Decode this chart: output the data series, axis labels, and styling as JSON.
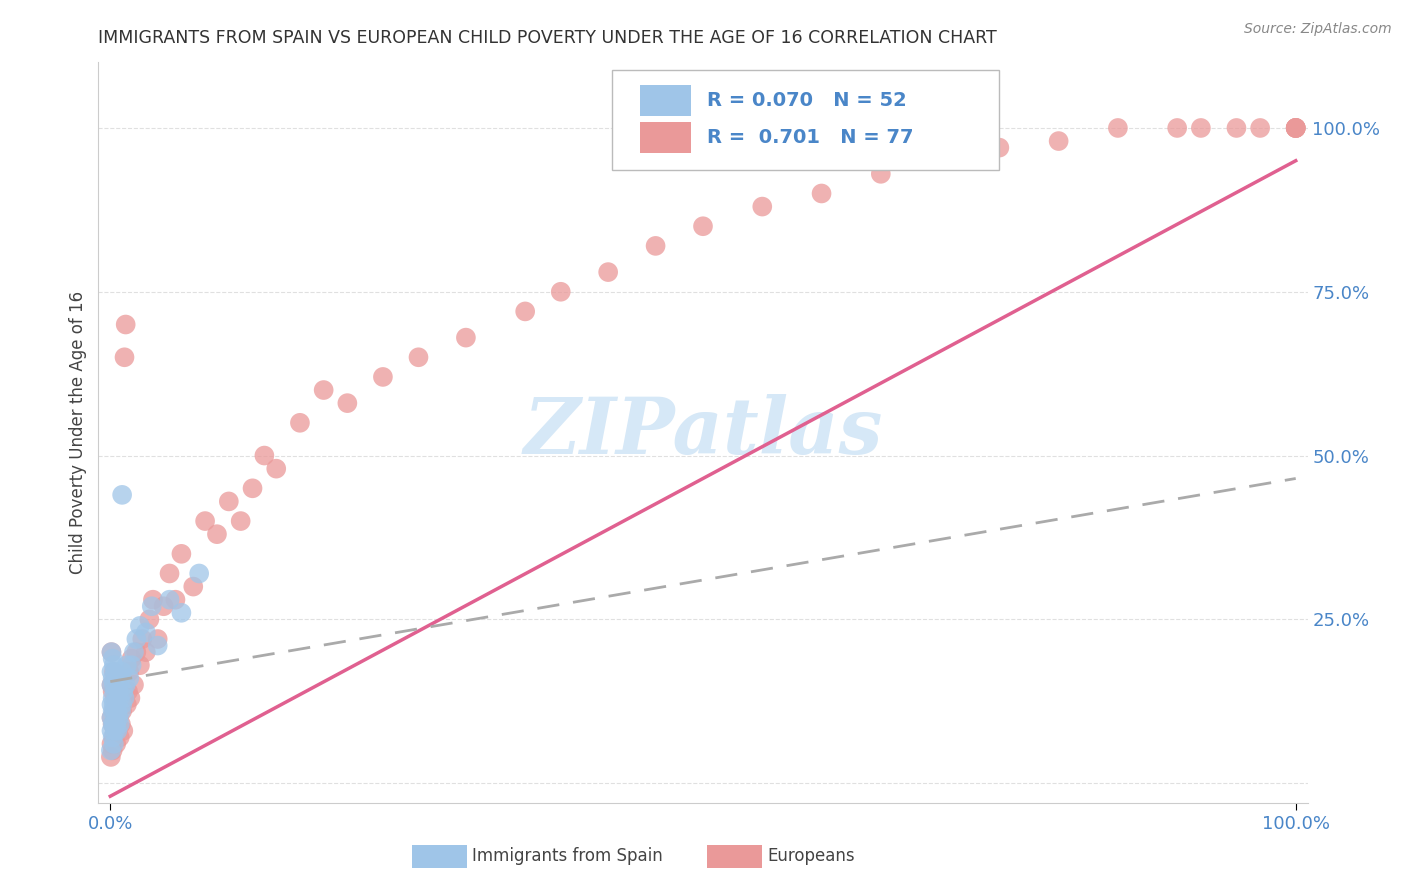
{
  "title": "IMMIGRANTS FROM SPAIN VS EUROPEAN CHILD POVERTY UNDER THE AGE OF 16 CORRELATION CHART",
  "source": "Source: ZipAtlas.com",
  "ylabel": "Child Poverty Under the Age of 16",
  "watermark": "ZIPatlas",
  "legend_blue_R": "0.070",
  "legend_blue_N": "52",
  "legend_pink_R": "0.701",
  "legend_pink_N": "77",
  "legend_label_blue": "Immigrants from Spain",
  "legend_label_pink": "Europeans",
  "blue_color": "#9fc5e8",
  "pink_color": "#ea9999",
  "blue_line_color": "#aaaaaa",
  "pink_line_color": "#e06090",
  "title_color": "#333333",
  "axis_label_color": "#4a86c8",
  "watermark_color": "#d6e8f7",
  "background_color": "#ffffff",
  "grid_color": "#dddddd",
  "blue_x": [
    0.0005,
    0.001,
    0.001,
    0.001,
    0.001,
    0.001,
    0.001,
    0.002,
    0.002,
    0.002,
    0.002,
    0.002,
    0.002,
    0.003,
    0.003,
    0.003,
    0.003,
    0.003,
    0.004,
    0.004,
    0.004,
    0.004,
    0.005,
    0.005,
    0.005,
    0.006,
    0.006,
    0.006,
    0.007,
    0.007,
    0.008,
    0.008,
    0.009,
    0.009,
    0.01,
    0.01,
    0.011,
    0.012,
    0.013,
    0.014,
    0.016,
    0.018,
    0.02,
    0.022,
    0.025,
    0.03,
    0.035,
    0.04,
    0.05,
    0.06,
    0.075,
    0.01
  ],
  "blue_y": [
    0.05,
    0.08,
    0.1,
    0.12,
    0.15,
    0.17,
    0.2,
    0.07,
    0.09,
    0.11,
    0.13,
    0.16,
    0.19,
    0.06,
    0.09,
    0.12,
    0.15,
    0.18,
    0.08,
    0.11,
    0.14,
    0.17,
    0.09,
    0.12,
    0.16,
    0.08,
    0.11,
    0.15,
    0.1,
    0.14,
    0.09,
    0.13,
    0.11,
    0.16,
    0.12,
    0.17,
    0.14,
    0.13,
    0.15,
    0.18,
    0.16,
    0.18,
    0.2,
    0.22,
    0.24,
    0.23,
    0.27,
    0.21,
    0.28,
    0.26,
    0.32,
    0.44
  ],
  "pink_x": [
    0.0005,
    0.001,
    0.001,
    0.001,
    0.001,
    0.002,
    0.002,
    0.002,
    0.003,
    0.003,
    0.003,
    0.004,
    0.004,
    0.005,
    0.005,
    0.006,
    0.006,
    0.007,
    0.008,
    0.008,
    0.009,
    0.01,
    0.011,
    0.012,
    0.013,
    0.014,
    0.015,
    0.016,
    0.017,
    0.018,
    0.02,
    0.022,
    0.025,
    0.027,
    0.03,
    0.033,
    0.036,
    0.04,
    0.045,
    0.05,
    0.055,
    0.06,
    0.07,
    0.08,
    0.09,
    0.1,
    0.11,
    0.12,
    0.13,
    0.14,
    0.16,
    0.18,
    0.2,
    0.23,
    0.26,
    0.3,
    0.35,
    0.38,
    0.42,
    0.46,
    0.5,
    0.55,
    0.6,
    0.65,
    0.7,
    0.75,
    0.8,
    0.85,
    0.9,
    0.92,
    0.95,
    0.97,
    1.0,
    1.0,
    1.0,
    1.0,
    1.0
  ],
  "pink_y": [
    0.04,
    0.06,
    0.1,
    0.15,
    0.2,
    0.05,
    0.09,
    0.14,
    0.07,
    0.11,
    0.17,
    0.08,
    0.13,
    0.06,
    0.12,
    0.08,
    0.14,
    0.1,
    0.07,
    0.13,
    0.09,
    0.11,
    0.08,
    0.65,
    0.7,
    0.12,
    0.14,
    0.17,
    0.13,
    0.19,
    0.15,
    0.2,
    0.18,
    0.22,
    0.2,
    0.25,
    0.28,
    0.22,
    0.27,
    0.32,
    0.28,
    0.35,
    0.3,
    0.4,
    0.38,
    0.43,
    0.4,
    0.45,
    0.5,
    0.48,
    0.55,
    0.6,
    0.58,
    0.62,
    0.65,
    0.68,
    0.72,
    0.75,
    0.78,
    0.82,
    0.85,
    0.88,
    0.9,
    0.93,
    0.95,
    0.97,
    0.98,
    1.0,
    1.0,
    1.0,
    1.0,
    1.0,
    1.0,
    1.0,
    1.0,
    1.0,
    1.0
  ],
  "xlim": [
    -0.01,
    1.01
  ],
  "ylim": [
    -0.03,
    1.1
  ]
}
